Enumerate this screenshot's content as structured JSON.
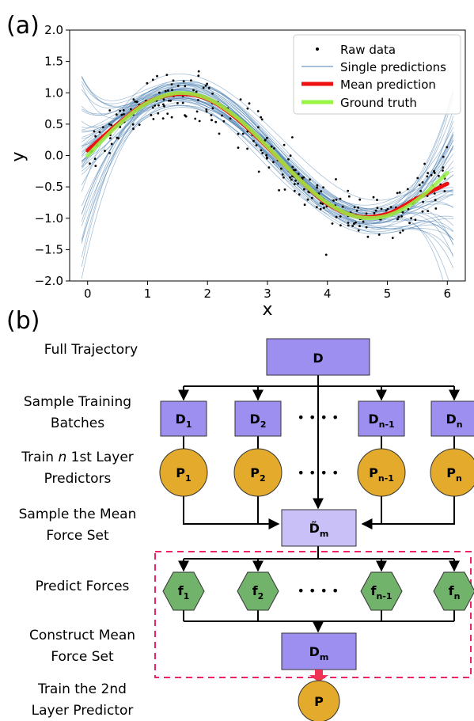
{
  "panel_a": {
    "label": "(a)"
  },
  "panel_b": {
    "label": "(b)"
  },
  "chart_data": {
    "type": "line",
    "title": "",
    "xlabel": "x",
    "ylabel": "y",
    "xlim": [
      -0.3,
      6.3
    ],
    "ylim": [
      -2.0,
      2.0
    ],
    "xticks": [
      "0",
      "1",
      "2",
      "3",
      "4",
      "5",
      "6"
    ],
    "yticks": [
      "2.0",
      "1.5",
      "1.0",
      "0.5",
      "0.0",
      "−0.5",
      "−1.0",
      "−1.5",
      "−2.0"
    ],
    "grid": false,
    "legend_position": "top-right",
    "series": [
      {
        "name": "Raw data",
        "style": "points",
        "color": "#000000",
        "n_points": 300,
        "noise": 0.2,
        "function": "sin(x)"
      },
      {
        "name": "Single predictions",
        "style": "thin-lines",
        "color": "#4a7fb0",
        "count": 50
      },
      {
        "name": "Mean prediction",
        "style": "thick-line",
        "color": "#ee1111",
        "x": [
          0.0,
          0.5,
          1.0,
          1.5,
          2.0,
          2.5,
          3.0,
          3.5,
          4.0,
          4.5,
          5.0,
          5.5,
          6.0
        ],
        "y": [
          0.08,
          0.5,
          0.85,
          0.98,
          0.9,
          0.58,
          0.13,
          -0.35,
          -0.77,
          -0.97,
          -0.93,
          -0.68,
          -0.45
        ]
      },
      {
        "name": "Ground truth",
        "style": "thick-line",
        "color": "#99f545",
        "x": [
          0.0,
          0.5,
          1.0,
          1.5,
          2.0,
          2.5,
          3.0,
          3.5,
          4.0,
          4.5,
          5.0,
          5.5,
          6.0
        ],
        "y": [
          0.0,
          0.479,
          0.841,
          0.997,
          0.909,
          0.598,
          0.141,
          -0.351,
          -0.757,
          -0.978,
          -0.959,
          -0.706,
          -0.279
        ]
      }
    ]
  },
  "flow": {
    "steps": {
      "full_traj": "Full Trajectory",
      "sample_batches_1": "Sample Training",
      "sample_batches_2": "Batches",
      "train_n_a": "Train ",
      "train_n_b": "n",
      "train_n_c": " 1st Layer",
      "train_n_2": "Predictors",
      "sample_mean_1": "Sample the Mean",
      "sample_mean_2": "Force Set",
      "predict": "Predict Forces",
      "construct_1": "Construct Mean",
      "construct_2": "Force Set",
      "train2_1": "Train the 2nd",
      "train2_2": "Layer Predictor"
    },
    "nodes": {
      "D": "D",
      "D1": "D",
      "D1_sub": "1",
      "D2": "D",
      "D2_sub": "2",
      "Dn1": "D",
      "Dn1_sub": "n-1",
      "Dn": "D",
      "Dn_sub": "n",
      "P1": "P",
      "P1_sub": "1",
      "P2": "P",
      "P2_sub": "2",
      "Pn1": "P",
      "Pn1_sub": "n-1",
      "Pn": "P",
      "Pn_sub": "n",
      "Dm_tilde": "D̃",
      "Dm_tilde_sub": "m",
      "f1": "f",
      "f1_sub": "1",
      "f2": "f",
      "f2_sub": "2",
      "fn1": "f",
      "fn1_sub": "n-1",
      "fn": "f",
      "fn_sub": "n",
      "Dm": "D",
      "Dm_sub": "m",
      "P": "P"
    },
    "ellipsis": "• • • •",
    "colors": {
      "box": "#9d8ff0",
      "box_light": "#c8c0f7",
      "circle": "#e3aa2b",
      "hex": "#72b36c",
      "dashed": "#ee2266",
      "arrow_red": "#ee3355"
    }
  }
}
